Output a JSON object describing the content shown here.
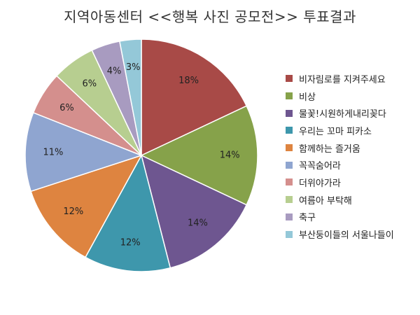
{
  "chart_data": {
    "type": "pie",
    "title": "지역아동센터 <<행복 사진 공모전>> 투표결과",
    "legend_position": "right",
    "categories": [
      "비자림로를 지켜주세요",
      "비상",
      "물꽃!시원하게내리꽂다",
      "우리는 꼬마 피카소",
      "함께하는 즐거움",
      "꼭꼭숨어라",
      "더위야가라",
      "여름아 부탁해",
      "축구",
      "부산둥이들의 서울나들이"
    ],
    "values": [
      18,
      14,
      14,
      12,
      12,
      11,
      6,
      6,
      4,
      3
    ],
    "labels": [
      "18%",
      "14%",
      "14%",
      "12%",
      "12%",
      "11%",
      "6%",
      "6%",
      "4%",
      "3%"
    ],
    "colors": [
      "#A84A47",
      "#86A24A",
      "#6E5690",
      "#3E97AC",
      "#DE8440",
      "#8FA5D0",
      "#D48F8D",
      "#B7CE90",
      "#A89BC0",
      "#94C8D8"
    ]
  }
}
